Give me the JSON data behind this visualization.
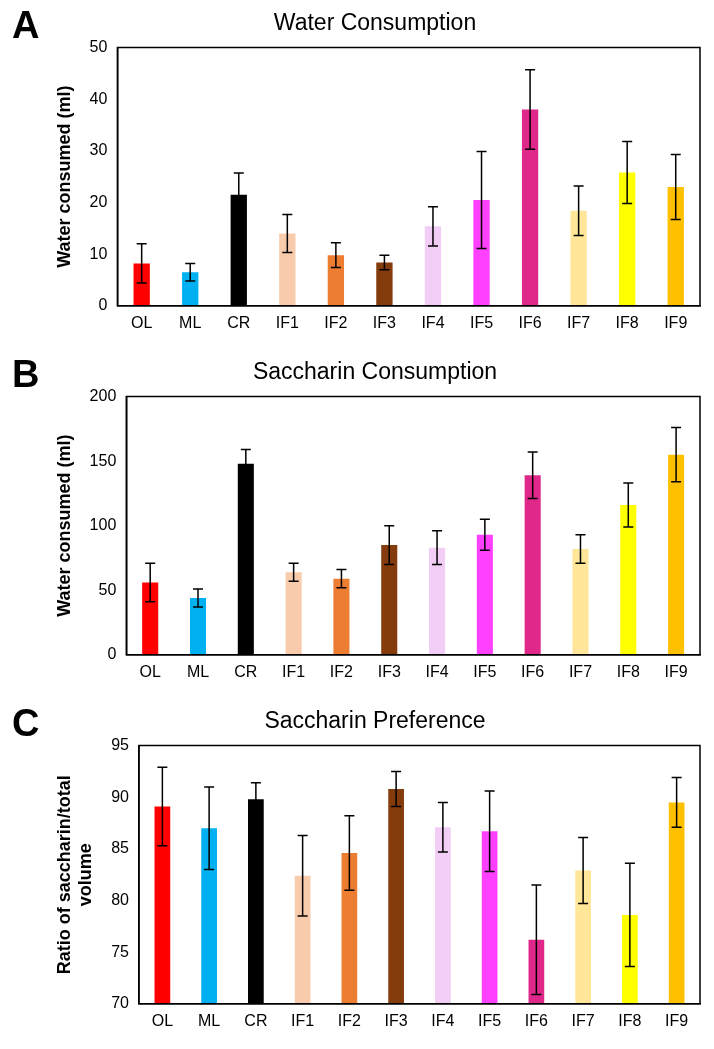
{
  "chart_data": [
    {
      "type": "bar",
      "title": "Water Consumption",
      "ylabel": "Water consumed (ml)",
      "annotations": [
        "A"
      ],
      "categories": [
        "OL",
        "ML",
        "CR",
        "IF1",
        "IF2",
        "IF3",
        "IF4",
        "IF5",
        "IF6",
        "IF7",
        "IF8",
        "IF9"
      ],
      "values": [
        8.2,
        6.5,
        21.5,
        14,
        9.8,
        8.4,
        15.4,
        20.5,
        38,
        18.4,
        25.8,
        23
      ],
      "errors": [
        3.8,
        1.7,
        4.2,
        3.7,
        2.4,
        1.4,
        3.8,
        9.4,
        7.7,
        4.8,
        6,
        6.3
      ],
      "colors": [
        "#ff0000",
        "#00b0f0",
        "#000000",
        "#f8cbad",
        "#ed7d31",
        "#843c0c",
        "#f2cdf5",
        "#ff40ff",
        "#e0288a",
        "#ffe699",
        "#ffff00",
        "#ffc000"
      ],
      "ylim": [
        0,
        50
      ],
      "yticks": [
        0,
        10,
        20,
        30,
        40,
        50
      ],
      "grid": false,
      "legend": false
    },
    {
      "type": "bar",
      "title": "Saccharin Consumption",
      "ylabel": "Water consumed (ml)",
      "annotations": [
        "B"
      ],
      "categories": [
        "OL",
        "ML",
        "CR",
        "IF1",
        "IF2",
        "IF3",
        "IF4",
        "IF5",
        "IF6",
        "IF7",
        "IF8",
        "IF9"
      ],
      "values": [
        56,
        44,
        148,
        64,
        59,
        85,
        83,
        93,
        139,
        82,
        116,
        155
      ],
      "errors": [
        15,
        7,
        11,
        7,
        7,
        15,
        13,
        12,
        18,
        11,
        17,
        21
      ],
      "colors": [
        "#ff0000",
        "#00b0f0",
        "#000000",
        "#f8cbad",
        "#ed7d31",
        "#843c0c",
        "#f2cdf5",
        "#ff40ff",
        "#e0288a",
        "#ffe699",
        "#ffff00",
        "#ffc000"
      ],
      "ylim": [
        0,
        200
      ],
      "yticks": [
        0,
        50,
        100,
        150,
        200
      ],
      "grid": false,
      "legend": false
    },
    {
      "type": "bar",
      "title": "Saccharin Preference",
      "ylabel": "Ratio of saccharin/total volume",
      "annotations": [
        "C"
      ],
      "categories": [
        "OL",
        "ML",
        "CR",
        "IF1",
        "IF2",
        "IF3",
        "IF4",
        "IF5",
        "IF6",
        "IF7",
        "IF8",
        "IF9"
      ],
      "values": [
        89.1,
        87,
        89.8,
        82.4,
        84.6,
        90.8,
        87.1,
        86.7,
        76.2,
        82.9,
        78.6,
        89.5
      ],
      "errors": [
        3.8,
        4,
        1.6,
        3.9,
        3.6,
        1.7,
        2.4,
        3.9,
        5.3,
        3.2,
        5,
        2.4
      ],
      "colors": [
        "#ff0000",
        "#00b0f0",
        "#000000",
        "#f8cbad",
        "#ed7d31",
        "#843c0c",
        "#f2cdf5",
        "#ff40ff",
        "#e0288a",
        "#ffe699",
        "#ffff00",
        "#ffc000"
      ],
      "ylim": [
        70,
        95
      ],
      "yticks": [
        70,
        75,
        80,
        85,
        90,
        95
      ],
      "grid": false,
      "legend": false
    }
  ]
}
